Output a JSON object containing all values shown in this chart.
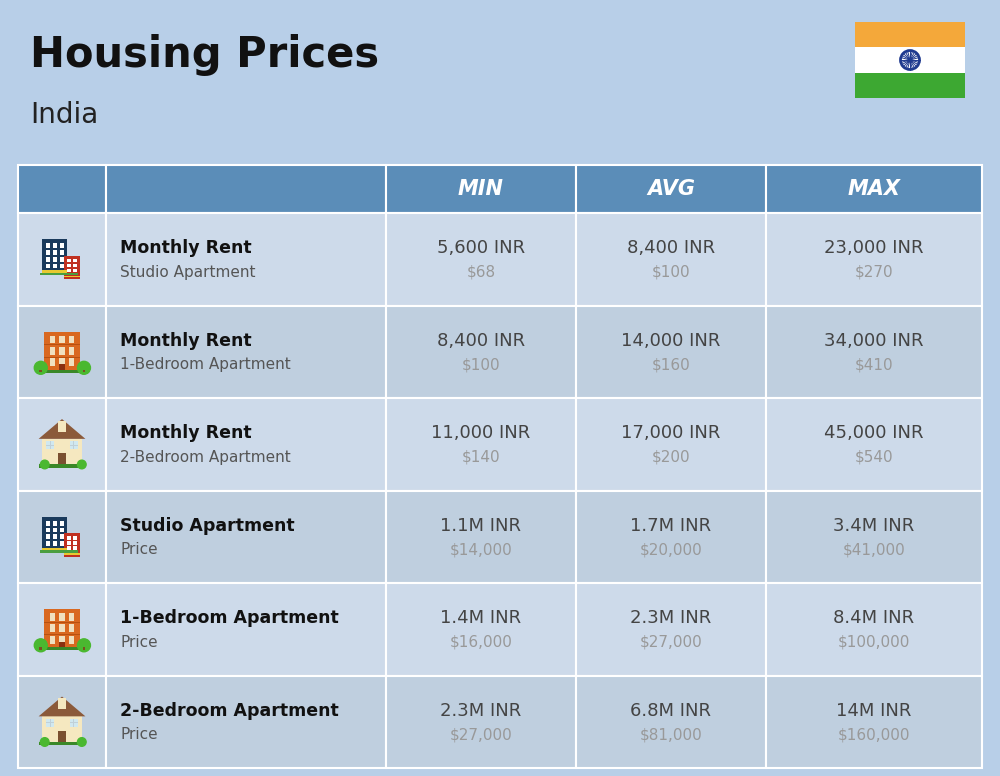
{
  "title": "Housing Prices",
  "subtitle": "India",
  "background_color": "#b8cfe8",
  "header_bg_color": "#5b8db8",
  "header_text_color": "#ffffff",
  "row_bg_color_1": "#cddaea",
  "row_bg_color_2": "#bfcfdf",
  "col_header_labels": [
    "MIN",
    "AVG",
    "MAX"
  ],
  "rows": [
    {
      "bold_label": "Monthly Rent",
      "sub_label": "Studio Apartment",
      "min_main": "5,600 INR",
      "min_sub": "$68",
      "avg_main": "8,400 INR",
      "avg_sub": "$100",
      "max_main": "23,000 INR",
      "max_sub": "$270",
      "icon_type": "office_blue"
    },
    {
      "bold_label": "Monthly Rent",
      "sub_label": "1-Bedroom Apartment",
      "min_main": "8,400 INR",
      "min_sub": "$100",
      "avg_main": "14,000 INR",
      "avg_sub": "$160",
      "max_main": "34,000 INR",
      "max_sub": "$410",
      "icon_type": "apartment_orange"
    },
    {
      "bold_label": "Monthly Rent",
      "sub_label": "2-Bedroom Apartment",
      "min_main": "11,000 INR",
      "min_sub": "$140",
      "avg_main": "17,000 INR",
      "avg_sub": "$200",
      "max_main": "45,000 INR",
      "max_sub": "$540",
      "icon_type": "house_beige"
    },
    {
      "bold_label": "Studio Apartment",
      "sub_label": "Price",
      "min_main": "1.1M INR",
      "min_sub": "$14,000",
      "avg_main": "1.7M INR",
      "avg_sub": "$20,000",
      "max_main": "3.4M INR",
      "max_sub": "$41,000",
      "icon_type": "office_blue"
    },
    {
      "bold_label": "1-Bedroom Apartment",
      "sub_label": "Price",
      "min_main": "1.4M INR",
      "min_sub": "$16,000",
      "avg_main": "2.3M INR",
      "avg_sub": "$27,000",
      "max_main": "8.4M INR",
      "max_sub": "$100,000",
      "icon_type": "apartment_orange"
    },
    {
      "bold_label": "2-Bedroom Apartment",
      "sub_label": "Price",
      "min_main": "2.3M INR",
      "min_sub": "$27,000",
      "avg_main": "6.8M INR",
      "avg_sub": "$81,000",
      "max_main": "14M INR",
      "max_sub": "$160,000",
      "icon_type": "house_beige"
    }
  ],
  "value_text_color": "#444444",
  "sub_value_text_color": "#999999",
  "label_bold_color": "#111111",
  "label_sub_color": "#555555",
  "flag_orange": "#F4A83A",
  "flag_white": "#FFFFFF",
  "flag_green": "#3DA832",
  "flag_chakra": "#1F3A8F"
}
